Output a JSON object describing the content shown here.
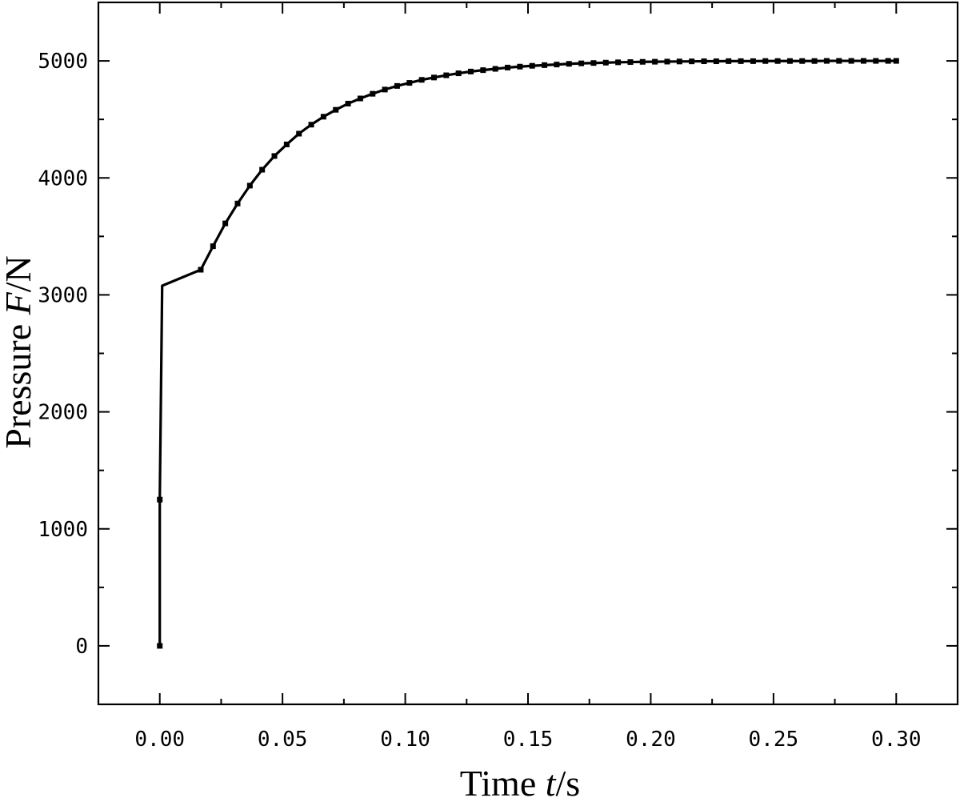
{
  "chart_data": {
    "type": "line",
    "xlabel": {
      "prefix": "Time ",
      "italic": "t",
      "suffix": "/s"
    },
    "ylabel": {
      "prefix": "Pressure ",
      "italic": "F",
      "suffix": "/N"
    },
    "xlim": [
      -0.025,
      0.325
    ],
    "ylim": [
      -500,
      5500
    ],
    "x_ticks": [
      0.0,
      0.05,
      0.1,
      0.15,
      0.2,
      0.25,
      0.3
    ],
    "x_tick_labels": [
      "0.00",
      "0.05",
      "0.10",
      "0.15",
      "0.20",
      "0.25",
      "0.30"
    ],
    "y_ticks": [
      0,
      1000,
      2000,
      3000,
      4000,
      5000
    ],
    "y_tick_labels": [
      "0",
      "1000",
      "2000",
      "3000",
      "4000",
      "5000"
    ],
    "grid": false,
    "line_color": "#000000",
    "series": [
      {
        "marker": "square",
        "x": [
          0.0,
          0.0,
          0.0167,
          0.0217,
          0.0267,
          0.0317,
          0.0367,
          0.0417,
          0.0467,
          0.0517,
          0.0567,
          0.0617,
          0.0667,
          0.0717,
          0.0767,
          0.0817,
          0.0867,
          0.0917,
          0.0967,
          0.1017,
          0.1067,
          0.1117,
          0.1167,
          0.1217,
          0.1267,
          0.1317,
          0.1367,
          0.1417,
          0.1467,
          0.1517,
          0.1567,
          0.1617,
          0.1667,
          0.1717,
          0.1767,
          0.1817,
          0.1867,
          0.1917,
          0.1967,
          0.2017,
          0.2067,
          0.2117,
          0.2167,
          0.2217,
          0.2267,
          0.2317,
          0.2367,
          0.2417,
          0.2467,
          0.2517,
          0.2567,
          0.2617,
          0.2667,
          0.2717,
          0.2767,
          0.2817,
          0.2867,
          0.2917,
          0.2967,
          0.3
        ],
        "y": [
          0,
          1250,
          3215,
          3416,
          3611,
          3781,
          3934,
          4070,
          4187,
          4286,
          4378,
          4455,
          4523,
          4582,
          4635,
          4679,
          4719,
          4755,
          4786,
          4812,
          4838,
          4858,
          4877,
          4894,
          4909,
          4921,
          4932,
          4943,
          4951,
          4958,
          4964,
          4969,
          4975,
          4979,
          4982,
          4985,
          4988,
          4990,
          4992,
          4993,
          4994,
          4995,
          4996,
          4997,
          4997,
          4998,
          4998,
          4998,
          4999,
          4999,
          4999,
          4999,
          4999,
          5000,
          5000,
          5000,
          5000,
          5000,
          5000,
          5000
        ]
      }
    ]
  }
}
